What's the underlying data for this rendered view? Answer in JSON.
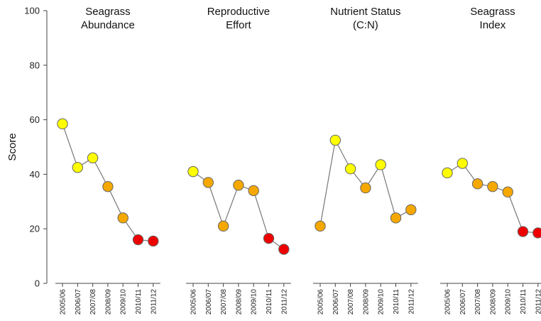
{
  "chart_data": {
    "type": "line",
    "ylabel": "Score",
    "ylim": [
      0,
      100
    ],
    "yticks": [
      0,
      20,
      40,
      60,
      80,
      100
    ],
    "grid": false,
    "categories": [
      "2005/06",
      "2006/07",
      "2007/08",
      "2008/09",
      "2009/10",
      "2010/11",
      "2011/12"
    ],
    "colors": {
      "yellow": "#ffff00",
      "orange": "#f5a800",
      "red": "#ee0000",
      "line": "#777777"
    },
    "panels": [
      {
        "title": [
          "Seagrass",
          "Abundance"
        ],
        "values": [
          58.5,
          42.5,
          46,
          35.5,
          24,
          16,
          15.5
        ],
        "point_colors": [
          "yellow",
          "yellow",
          "yellow",
          "orange",
          "orange",
          "red",
          "red"
        ]
      },
      {
        "title": [
          "Reproductive",
          "Effort"
        ],
        "values": [
          41,
          37,
          21,
          36,
          34,
          16.5,
          12.5
        ],
        "point_colors": [
          "yellow",
          "orange",
          "orange",
          "orange",
          "orange",
          "red",
          "red"
        ]
      },
      {
        "title": [
          "Nutrient Status",
          "(C:N)"
        ],
        "values": [
          21,
          52.5,
          42,
          35,
          43.5,
          24,
          27
        ],
        "point_colors": [
          "orange",
          "yellow",
          "yellow",
          "orange",
          "yellow",
          "orange",
          "orange"
        ]
      },
      {
        "title": [
          "Seagrass",
          "Index"
        ],
        "values": [
          40.5,
          44,
          36.5,
          35.5,
          33.5,
          19,
          18.5
        ],
        "point_colors": [
          "yellow",
          "yellow",
          "orange",
          "orange",
          "orange",
          "red",
          "red"
        ]
      }
    ]
  }
}
